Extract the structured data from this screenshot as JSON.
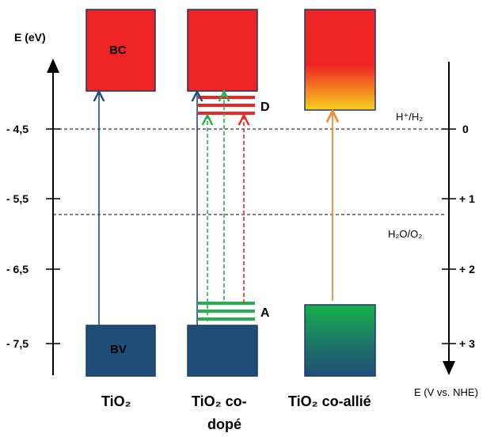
{
  "axes": {
    "left_title": "E (eV)",
    "left_ticks": [
      "- 4,5",
      "- 5,5",
      "- 6,5",
      "- 7,5"
    ],
    "right_title": "E (V vs. NHE)",
    "right_ticks": [
      "0",
      "+ 1",
      "+ 2",
      "+ 3"
    ]
  },
  "bands": {
    "conduction_label": "BC",
    "valence_label": "BV"
  },
  "levels": {
    "donor_label": "D",
    "acceptor_label": "A"
  },
  "redox": {
    "h_couple": "H⁺/H₂",
    "o_couple": "H₂O/O₂"
  },
  "materials": {
    "pure": "TiO₂",
    "codoped_line1": "TiO₂ co-",
    "codoped_line2": "dopé",
    "coalloyed": "TiO₂ co-allié"
  },
  "colors": {
    "conduction_band": "#ee2424",
    "valence_band": "#1f4e79",
    "donor_levels": "#ee2424",
    "acceptor_levels": "#22b14c",
    "pure_transition": "#1f4e79",
    "alloy_transition": "#f08a38"
  }
}
